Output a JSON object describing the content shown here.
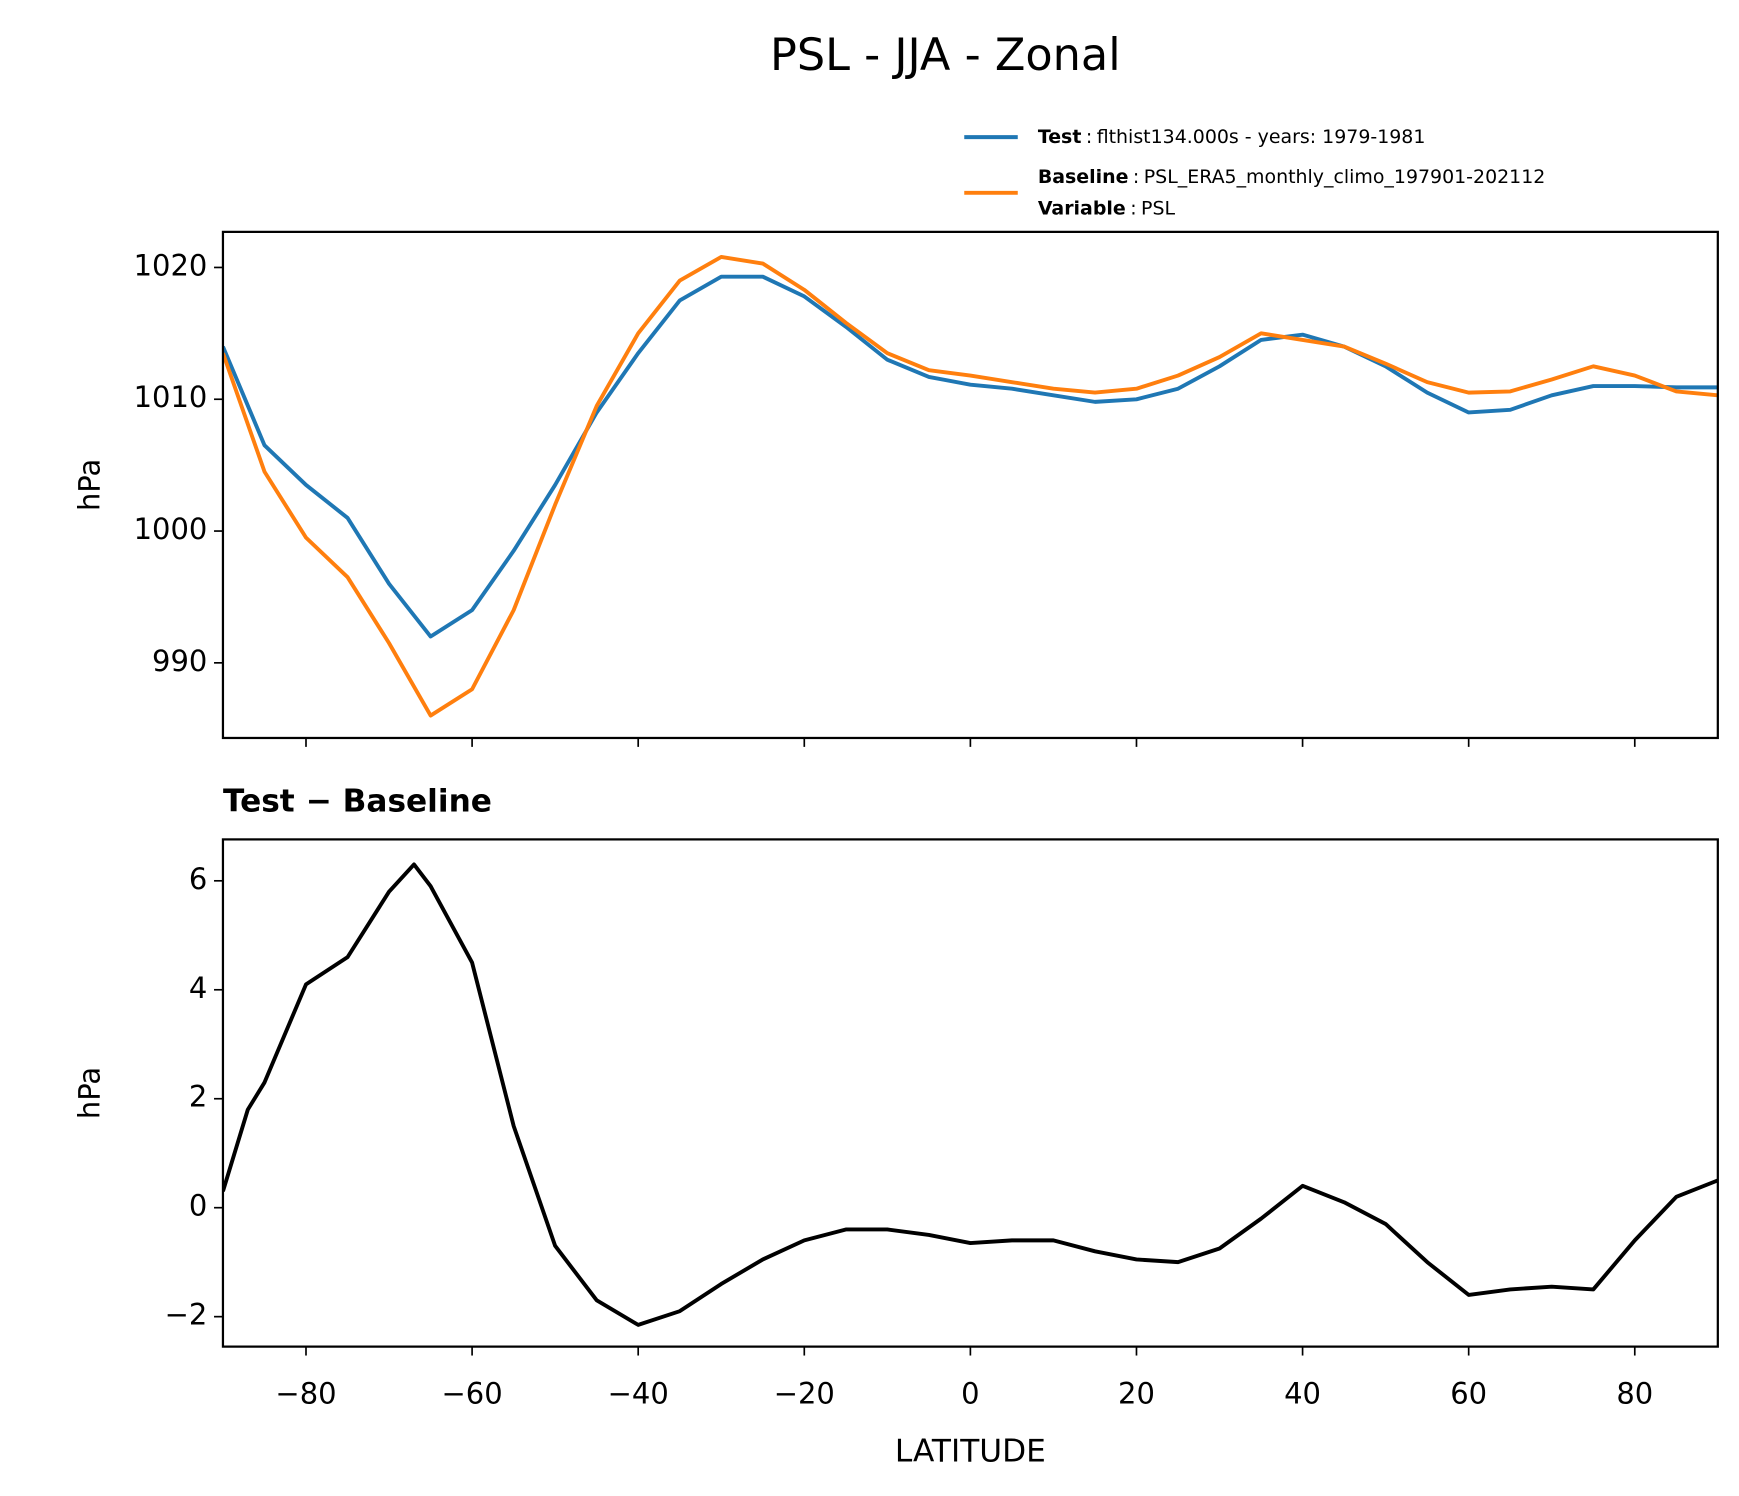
{
  "title": "PSL - JJA - Zonal",
  "chart_data": [
    {
      "type": "line",
      "ylabel": "hPa",
      "legend": {
        "position": "upper right",
        "separator": ":",
        "extra": {
          "name": "Variable",
          "description": "PSL"
        }
      },
      "x": [
        -90,
        -85,
        -80,
        -75,
        -70,
        -65,
        -60,
        -55,
        -50,
        -45,
        -40,
        -35,
        -30,
        -25,
        -20,
        -15,
        -10,
        -5,
        0,
        5,
        10,
        15,
        20,
        25,
        30,
        35,
        40,
        45,
        50,
        55,
        60,
        65,
        70,
        75,
        80,
        85,
        90
      ],
      "series": [
        {
          "name": "Test",
          "description": "flthist134.000s - years: 1979-1981",
          "color": "#1f77b4",
          "values": [
            1014,
            1006.5,
            1003.5,
            1001,
            996,
            992,
            994,
            998.5,
            1003.5,
            1009,
            1013.5,
            1017.5,
            1019.3,
            1019.3,
            1017.8,
            1015.5,
            1013,
            1011.7,
            1011.1,
            1010.8,
            1010.3,
            1009.8,
            1010,
            1010.8,
            1012.5,
            1014.5,
            1014.9,
            1014,
            1012.5,
            1010.5,
            1009,
            1009.2,
            1010.3,
            1011,
            1011,
            1010.9,
            1010.9
          ]
        },
        {
          "name": "Baseline",
          "description": "PSL_ERA5_monthly_climo_197901-202112",
          "color": "#ff7f0e",
          "values": [
            1013.5,
            1004.5,
            999.5,
            996.5,
            991.5,
            986,
            988,
            994,
            1002,
            1009.5,
            1015,
            1019,
            1020.8,
            1020.3,
            1018.3,
            1015.8,
            1013.5,
            1012.2,
            1011.8,
            1011.3,
            1010.8,
            1010.5,
            1010.8,
            1011.8,
            1013.2,
            1015,
            1014.5,
            1014,
            1012.7,
            1011.3,
            1010.5,
            1010.6,
            1011.5,
            1012.5,
            1011.8,
            1010.6,
            1010.3
          ]
        }
      ],
      "xlim": [
        -90,
        90
      ],
      "xticks": [
        -80,
        -60,
        -40,
        -20,
        0,
        20,
        40,
        60,
        80
      ],
      "xtick_labels": false,
      "ylim": [
        984.3,
        1022.7
      ],
      "yticks": [
        990,
        1000,
        1010,
        1020
      ]
    },
    {
      "type": "line",
      "title": "Test − Baseline",
      "ylabel": "hPa",
      "xlabel": "LATITUDE",
      "x": [
        -90,
        -87,
        -85,
        -80,
        -75,
        -70,
        -67,
        -65,
        -60,
        -55,
        -50,
        -45,
        -40,
        -35,
        -30,
        -25,
        -20,
        -15,
        -10,
        -5,
        0,
        5,
        10,
        15,
        20,
        25,
        30,
        35,
        40,
        45,
        50,
        55,
        60,
        65,
        70,
        75,
        80,
        85,
        90
      ],
      "series": [
        {
          "name": "Test − Baseline",
          "color": "#000000",
          "values": [
            0.3,
            1.8,
            2.3,
            4.1,
            4.6,
            5.8,
            6.3,
            5.9,
            4.5,
            1.5,
            -0.7,
            -1.7,
            -2.15,
            -1.9,
            -1.4,
            -0.95,
            -0.6,
            -0.4,
            -0.4,
            -0.5,
            -0.65,
            -0.6,
            -0.6,
            -0.8,
            -0.95,
            -1.0,
            -0.75,
            -0.2,
            0.4,
            0.1,
            -0.3,
            -1.0,
            -1.6,
            -1.5,
            -1.45,
            -1.5,
            -0.6,
            0.2,
            0.5
          ]
        }
      ],
      "xlim": [
        -90,
        90
      ],
      "xticks": [
        {
          "value": -80,
          "label": "−80"
        },
        {
          "value": -60,
          "label": "−60"
        },
        {
          "value": -40,
          "label": "−40"
        },
        {
          "value": -20,
          "label": "−20"
        },
        0,
        20,
        40,
        60,
        80
      ],
      "xtick_labels": true,
      "ylim": [
        -2.55,
        6.76
      ],
      "yticks": [
        {
          "value": -2,
          "label": "−2"
        },
        0,
        2,
        4,
        6
      ]
    }
  ]
}
